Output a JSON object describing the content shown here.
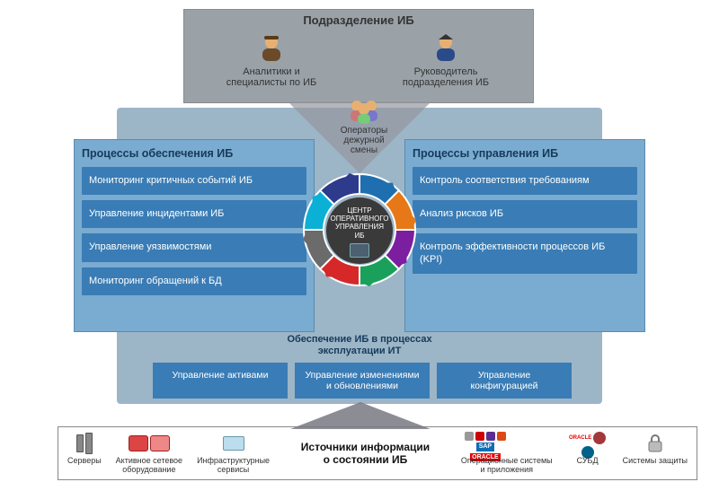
{
  "type": "infographic",
  "background_color": "#ffffff",
  "top_department": {
    "title": "Подразделение ИБ",
    "bg_color": "#9aa2a8",
    "roles": {
      "analysts": {
        "label": "Аналитики и\nспециалисты по ИБ"
      },
      "operators": {
        "label": "Операторы дежурной\nсмены"
      },
      "head": {
        "label": "Руководитель\nподразделения ИБ"
      }
    }
  },
  "mid_container_color": "#9cb5c7",
  "panel_bg_color": "#7aabd0",
  "panel_item_color": "#3a7cb5",
  "panel_title_color": "#163a5a",
  "left_panel": {
    "title": "Процессы обеспечения ИБ",
    "items": [
      "Мониторинг критичных событий ИБ",
      "Управление инцидентами ИБ",
      "Управление уязвимостями",
      "Мониторинг обращений к БД"
    ]
  },
  "right_panel": {
    "title": "Процессы управления ИБ",
    "items": [
      "Контроль соответствия требованиям",
      "Анализ рисков ИБ",
      "Контроль эффективности процессов ИБ (KPI)"
    ]
  },
  "center": {
    "label_line1": "Центр",
    "label_line2": "оперативного",
    "label_line3": "управления",
    "label_line4": "ИБ",
    "core_bg": "#3a3a3a",
    "ring_colors": [
      "#1f6fb0",
      "#e67817",
      "#7b1fa0",
      "#1aa05a",
      "#d62828",
      "#6b6b6b",
      "#0bb0d6",
      "#2e3a8c"
    ]
  },
  "bottom_section": {
    "title": "Обеспечение ИБ в процессах эксплуатации ИТ",
    "items": [
      "Управление активами",
      "Управление изменениями и обновлениями",
      "Управление конфигурацией"
    ]
  },
  "footer": {
    "title": "Источники информации о состоянии ИБ",
    "left": [
      {
        "label": "Серверы"
      },
      {
        "label": "Активное сетевое\nоборудование"
      },
      {
        "label": "Инфраструктурные\nсервисы"
      }
    ],
    "right": [
      {
        "label": "Операционные системы\nи приложения"
      },
      {
        "label": "СУБД"
      },
      {
        "label": "Системы защиты"
      }
    ],
    "brand_colors": {
      "sap": "#0f6db5",
      "oracle": "#e80000",
      "redhat": "#cc0000",
      "ubuntu": "#dd4814",
      "mysql": "#00618a",
      "sqlserver": "#a4373a"
    }
  }
}
